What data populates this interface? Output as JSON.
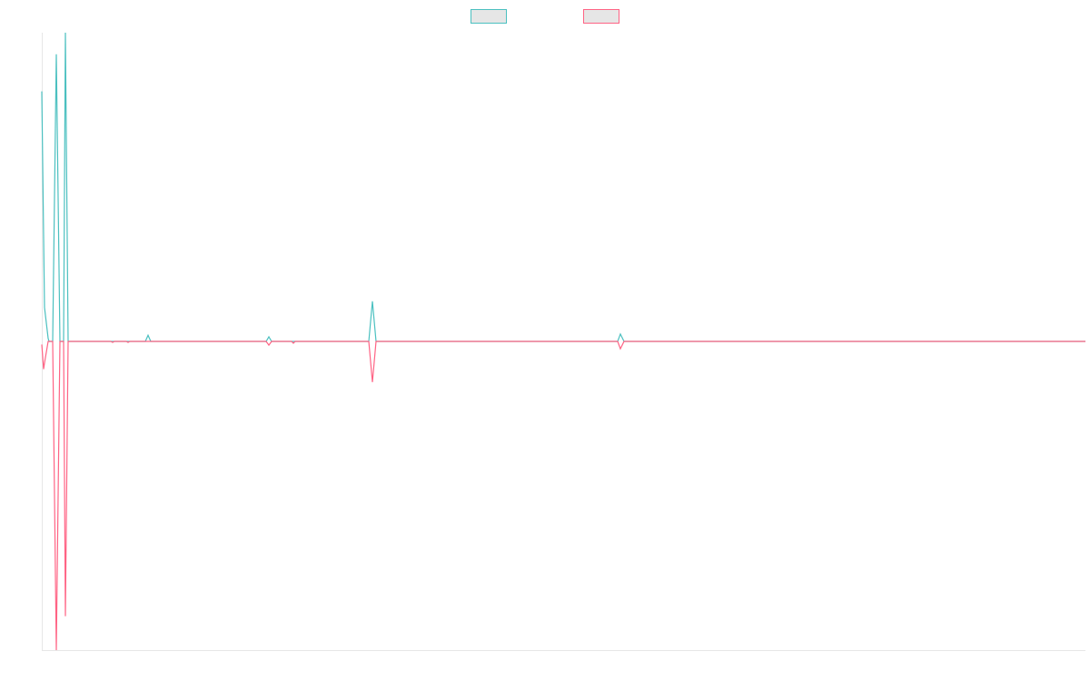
{
  "chart_data": {
    "type": "line",
    "x": [
      0,
      2,
      3,
      7,
      8,
      12,
      16,
      20,
      24,
      26,
      29,
      76,
      78,
      80,
      93,
      95,
      97,
      114,
      117,
      120,
      247,
      250,
      253,
      275,
      277,
      279,
      360,
      364,
      368,
      634,
      637,
      641,
      1149
    ],
    "series": [
      {
        "color": "#4bc0c0",
        "values": [
          81,
          34,
          11,
          1,
          0,
          0,
          93,
          0,
          0,
          100,
          0,
          0,
          0,
          0,
          0,
          0,
          0,
          0,
          2,
          0,
          0,
          1.5,
          0,
          0,
          0,
          0,
          0,
          13,
          0,
          0,
          2.4,
          0,
          0
        ]
      },
      {
        "color": "#ff6384",
        "values": [
          -1,
          -9,
          -7,
          0,
          0,
          0,
          -100,
          0,
          0,
          -89,
          0,
          0,
          -0.3,
          0,
          0,
          -0.3,
          0,
          0,
          0,
          0,
          0,
          -1.2,
          0,
          0,
          -0.6,
          0,
          0,
          -13.2,
          0,
          0,
          -2.4,
          0,
          0
        ]
      }
    ],
    "xlim": [
      0,
      1149
    ],
    "ylim": [
      -100,
      100
    ],
    "legend": "top"
  }
}
